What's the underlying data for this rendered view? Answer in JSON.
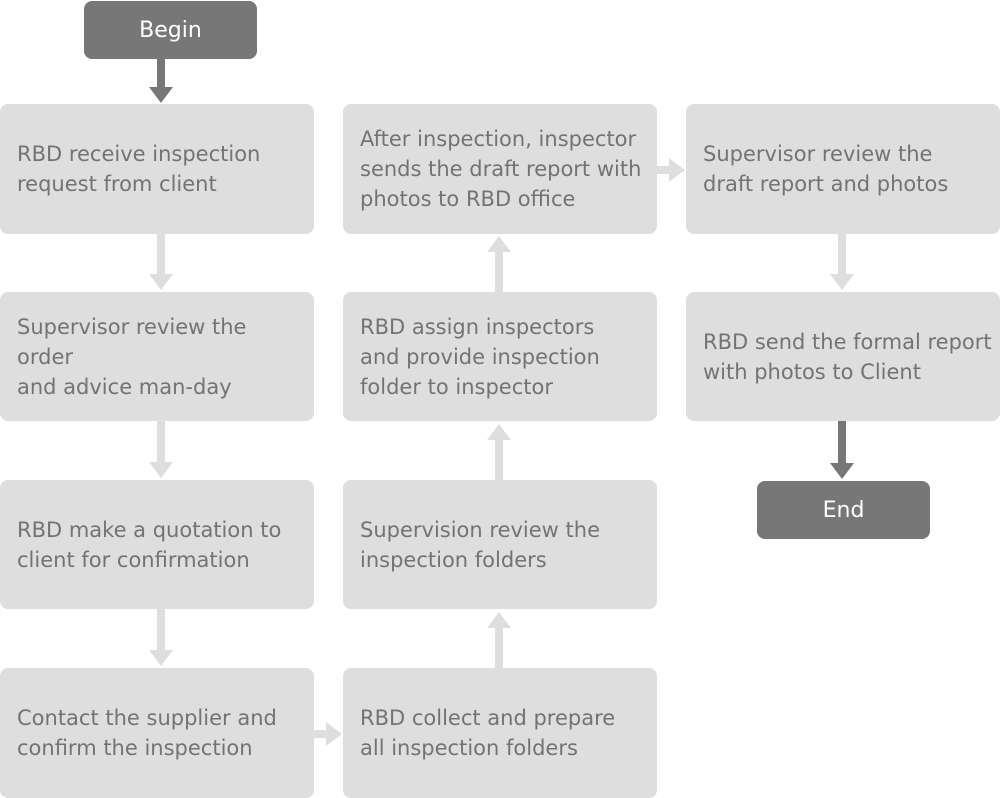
{
  "terminals": {
    "begin": "Begin",
    "end": "End"
  },
  "steps": {
    "receive_request": "RBD receive inspection\nrequest from client",
    "review_order": "Supervisor review the order\nand advice man-day",
    "make_quotation": "RBD make a quotation to\nclient for confirmation",
    "contact_supplier": "Contact the supplier and\nconfirm the inspection",
    "collect_folders": "RBD collect and prepare\nall inspection folders",
    "review_folders": "Supervision review the\ninspection folders",
    "assign_inspectors": "RBD assign inspectors\nand provide inspection\nfolder to inspector",
    "send_draft": "After inspection, inspector\nsends the draft report with\nphotos to RBD office",
    "review_draft": "Supervisor review the\ndraft report and photos",
    "send_formal": "RBD send the formal report\nwith photos to Client"
  },
  "colors": {
    "box_fill": "#dedede",
    "box_text": "#737373",
    "terminal_fill": "#777777",
    "terminal_text": "#ffffff",
    "arrow_light": "#dedede",
    "arrow_dark": "#777777"
  }
}
